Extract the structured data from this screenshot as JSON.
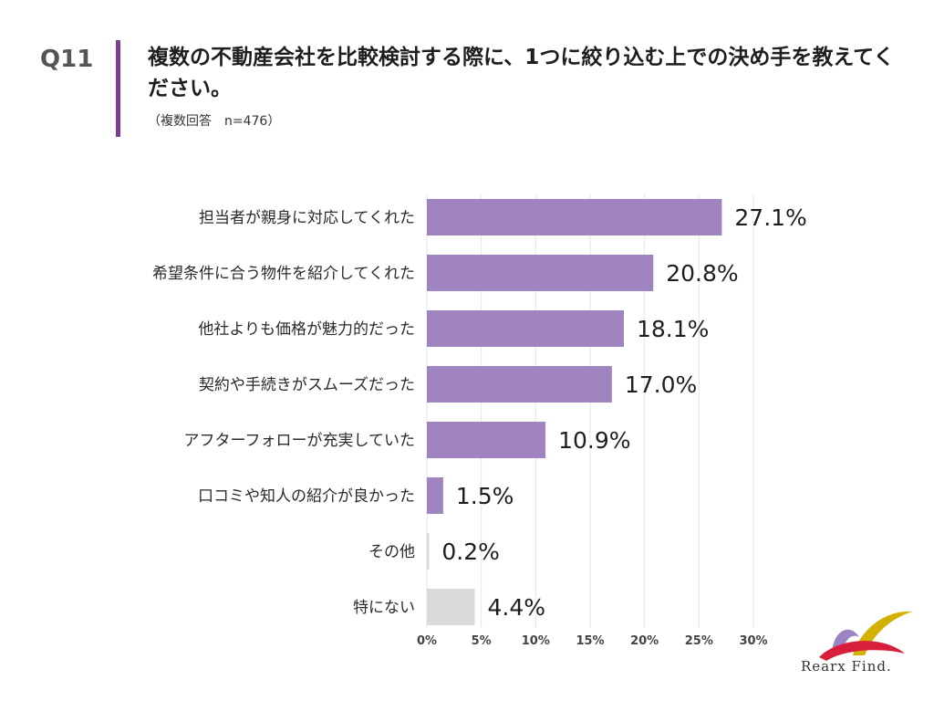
{
  "header": {
    "question_number": "Q11",
    "title": "複数の不動産会社を比較検討する際に、1つに絞り込む上での決め手を教えてください。",
    "subtitle": "（複数回答　n=476）"
  },
  "brand": {
    "logo_text": "Rearx Find."
  },
  "colors": {
    "accent": "#7a3f8e",
    "bar_primary": "#a084c0",
    "bar_secondary": "#d9d9d9",
    "grid": "#e6e6e6"
  },
  "chart_data": {
    "type": "bar",
    "orientation": "horizontal",
    "categories": [
      "担当者が親身に対応してくれた",
      "希望条件に合う物件を紹介してくれた",
      "他社よりも価格が魅力的だった",
      "契約や手続きがスムーズだった",
      "アフターフォローが充実していた",
      "口コミや知人の紹介が良かった",
      "その他",
      "特にない"
    ],
    "values": [
      27.1,
      20.8,
      18.1,
      17.0,
      10.9,
      1.5,
      0.2,
      4.4
    ],
    "value_labels": [
      "27.1%",
      "20.8%",
      "18.1%",
      "17.0%",
      "10.9%",
      "1.5%",
      "0.2%",
      "4.4%"
    ],
    "bar_color_groups": [
      "primary",
      "primary",
      "primary",
      "primary",
      "primary",
      "primary",
      "secondary",
      "secondary"
    ],
    "xlim": [
      0,
      30
    ],
    "xticks": [
      "0%",
      "5%",
      "10%",
      "15%",
      "20%",
      "25%",
      "30%"
    ],
    "grid": true,
    "legend": "none"
  }
}
